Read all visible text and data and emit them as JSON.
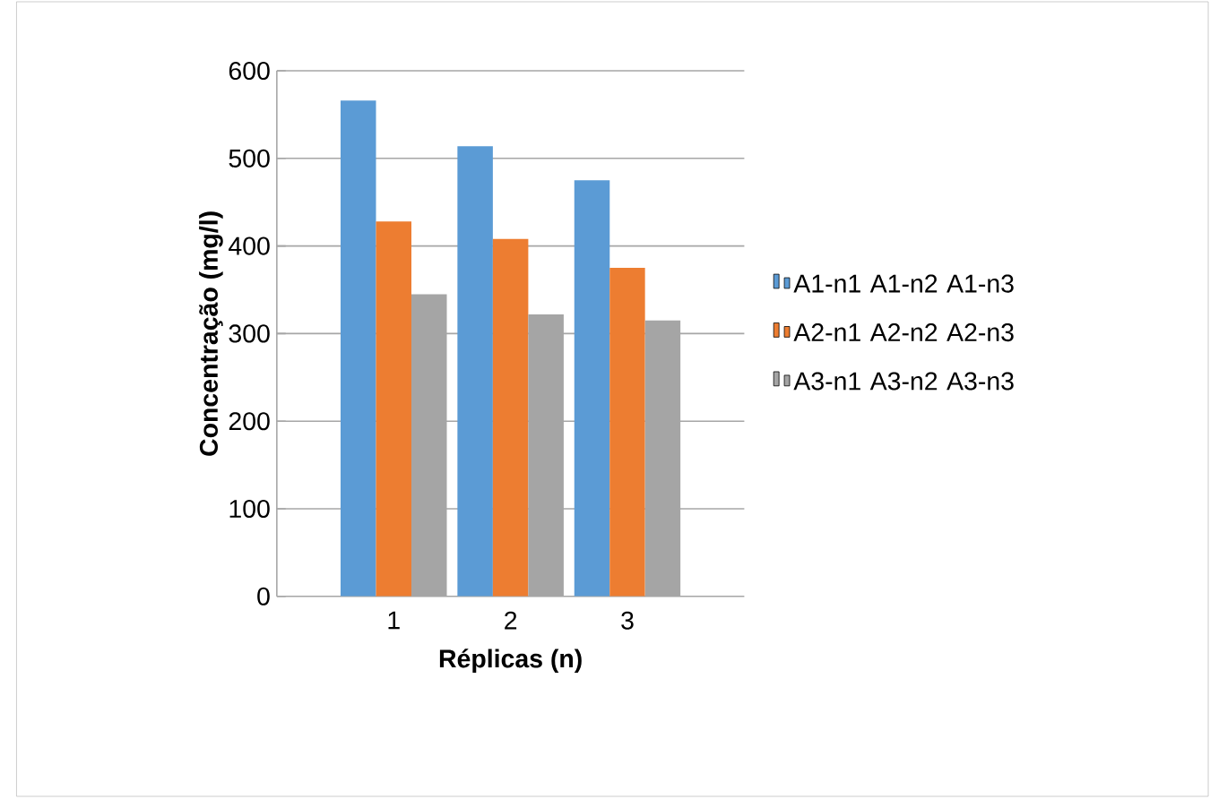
{
  "chart_data": {
    "type": "bar",
    "xlabel": "Réplicas (n)",
    "ylabel": "Concentração (mg/l)",
    "categories": [
      "1",
      "2",
      "3"
    ],
    "series": [
      {
        "name": "A1-n1 A1-n2 A1-n3",
        "color": "#5b9bd5",
        "values": [
          566,
          514,
          475
        ]
      },
      {
        "name": "A2-n1 A2-n2 A2-n3",
        "color": "#ed7d31",
        "values": [
          428,
          408,
          375
        ]
      },
      {
        "name": "A3-n1 A3-n2 A3-n3",
        "color": "#a5a5a5",
        "values": [
          345,
          322,
          315
        ]
      }
    ],
    "ylim": [
      0,
      600
    ],
    "yticks": [
      0,
      100,
      200,
      300,
      400,
      500,
      600
    ],
    "grid": "y",
    "legend": "right"
  }
}
